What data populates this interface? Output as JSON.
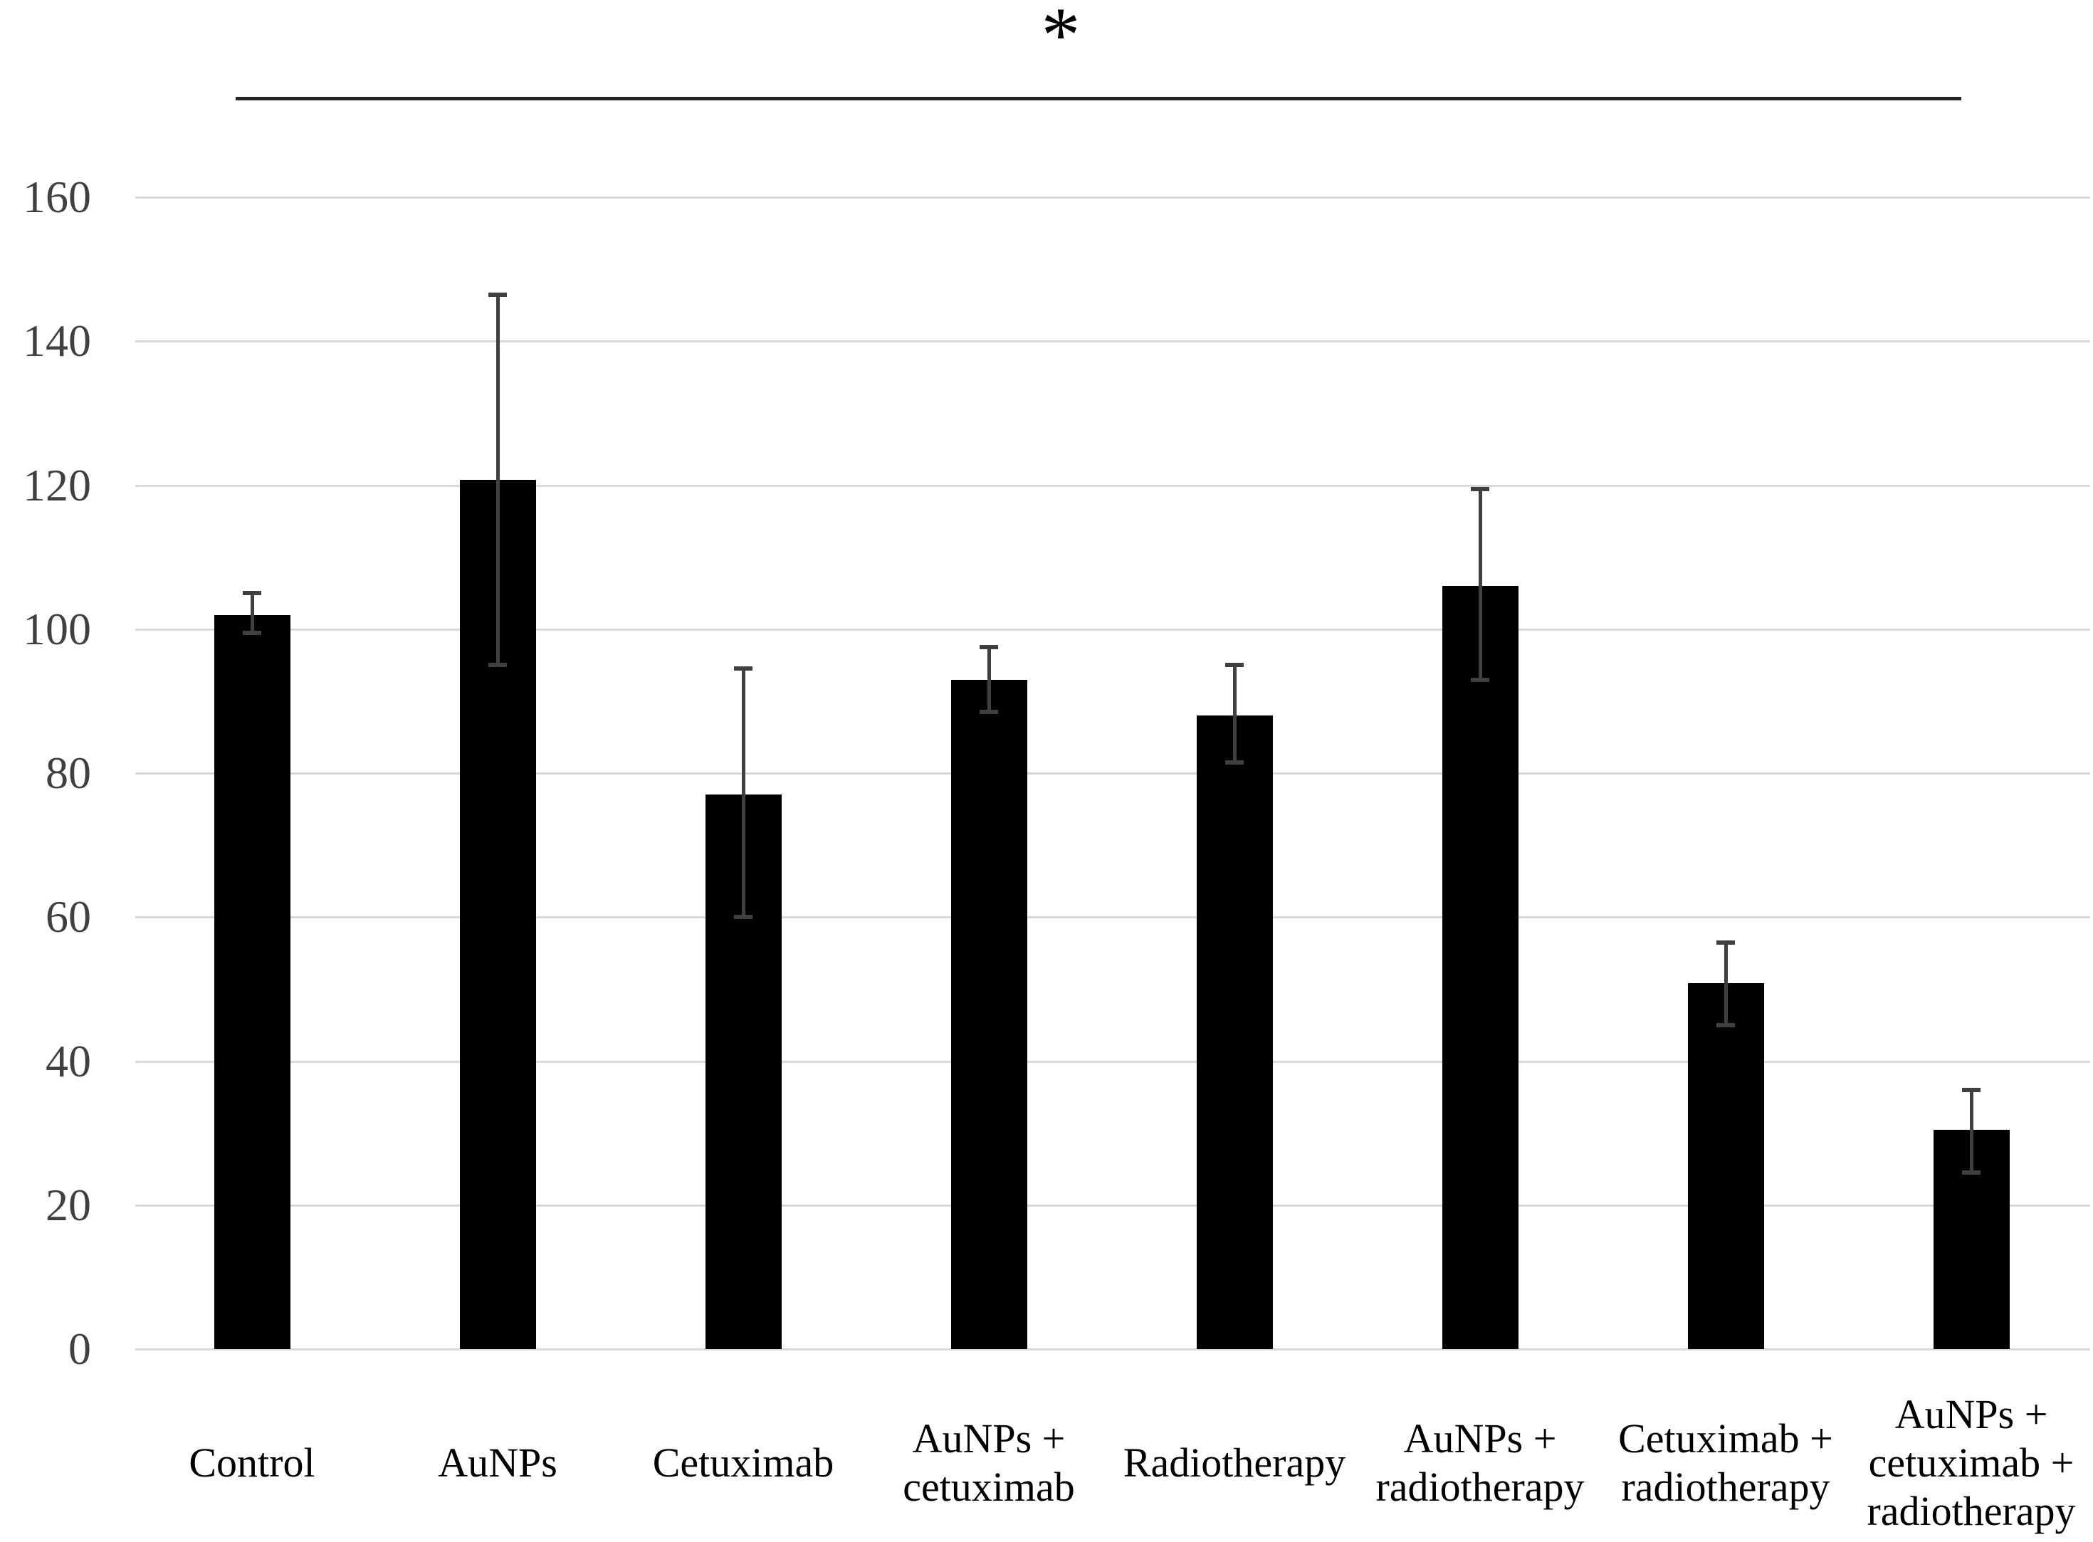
{
  "chart_data": {
    "type": "bar",
    "title": "",
    "xlabel": "",
    "ylabel": "",
    "categories": [
      "Control",
      "AuNPs",
      "Cetuximab",
      "AuNPs +\ncetuximab",
      "Radiotherapy",
      "AuNPs +\nradiotherapy",
      "Cetuximab +\nradiotherapy",
      "AuNPs +\ncetuximab +\nradiotherapy"
    ],
    "values": [
      102,
      120.7,
      77,
      93,
      88,
      106,
      50.8,
      30.5
    ],
    "error_high": [
      105,
      146.5,
      94.5,
      97.5,
      95,
      119.5,
      56.5,
      36
    ],
    "error_low": [
      99.5,
      95,
      60,
      88.5,
      81.5,
      93,
      45,
      24.5
    ],
    "ylim": [
      0,
      160
    ],
    "yticks": [
      0,
      20,
      40,
      60,
      80,
      100,
      120,
      140,
      160
    ],
    "grid": true,
    "legend": "none",
    "bar_color": "#000000",
    "error_bar_color": "#404040",
    "gridline_color": "#d9d9d9",
    "significance": {
      "label": "*",
      "from_category": "Control",
      "to_category": "AuNPs + cetuximab + radiotherapy"
    }
  }
}
